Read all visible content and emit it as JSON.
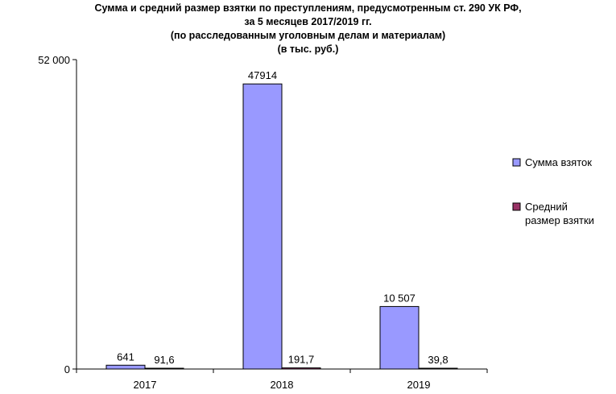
{
  "chart_data": {
    "type": "bar",
    "title_lines": [
      "Сумма и средний размер взятки по преступлениям, предусмотренным ст. 290 УК РФ,",
      "за 5 месяцев 2017/2019 гг.",
      "(по расследованным уголовным делам и материалам)",
      "(в тыс. руб.)"
    ],
    "categories": [
      "2017",
      "2018",
      "2019"
    ],
    "series": [
      {
        "name": "Сумма взяток",
        "values": [
          641,
          47914,
          10507
        ],
        "labels": [
          "641",
          "47914",
          "10 507"
        ],
        "color": "#9999FF"
      },
      {
        "name": "Средний размер взятки",
        "name_lines": [
          "Средний",
          "размер взятки"
        ],
        "values": [
          91.6,
          191.7,
          39.8
        ],
        "labels": [
          "91,6",
          "191,7",
          "39,8"
        ],
        "color": "#993366"
      }
    ],
    "y_ticks": [
      {
        "value": 0,
        "label": "0"
      },
      {
        "value": 52000,
        "label": "52 000"
      }
    ],
    "ylim": [
      0,
      52000
    ],
    "grid": false,
    "legend_position": "right"
  }
}
